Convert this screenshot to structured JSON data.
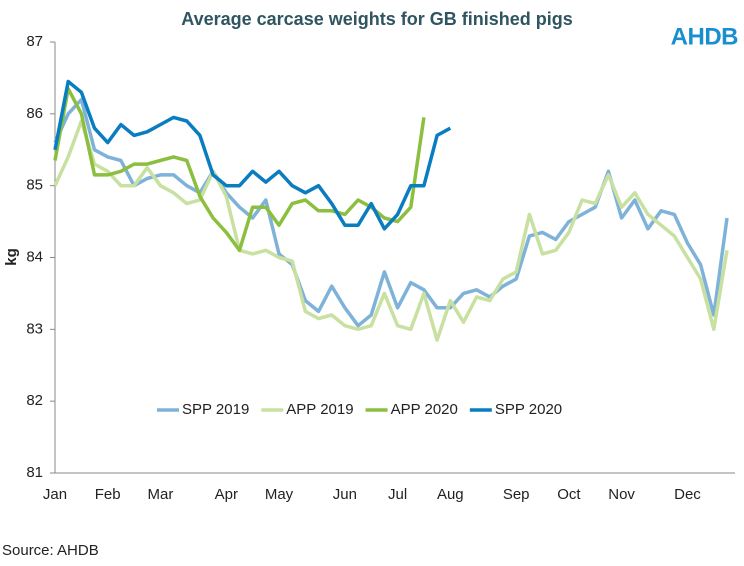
{
  "chart_data": {
    "type": "line",
    "title": "Average carcase weights for GB finished pigs",
    "logo": "AHDB",
    "source": "Source: AHDB",
    "y_label": "kg",
    "categories": [
      "Jan",
      null,
      null,
      null,
      "Feb",
      null,
      null,
      null,
      "Mar",
      null,
      null,
      null,
      null,
      "Apr",
      null,
      null,
      null,
      "May",
      null,
      null,
      null,
      null,
      "Jun",
      null,
      null,
      null,
      "Jul",
      null,
      null,
      null,
      "Aug",
      null,
      null,
      null,
      null,
      "Sep",
      null,
      null,
      null,
      "Oct",
      null,
      null,
      null,
      "Nov",
      null,
      null,
      null,
      null,
      "Dec",
      null,
      null,
      null
    ],
    "ylim": [
      81,
      87
    ],
    "yticks": [
      81,
      82,
      83,
      84,
      85,
      86,
      87
    ],
    "grid": false,
    "legend": "bottom",
    "series": [
      {
        "name": "SPP 2019",
        "color": "#7fb2d8",
        "values": [
          85.6,
          86.0,
          86.2,
          85.5,
          85.4,
          85.35,
          85.0,
          85.1,
          85.15,
          85.15,
          85.0,
          84.9,
          85.2,
          84.9,
          84.7,
          84.55,
          84.8,
          84.05,
          83.9,
          83.4,
          83.25,
          83.6,
          83.3,
          83.05,
          83.2,
          83.8,
          83.3,
          83.65,
          83.55,
          83.3,
          83.3,
          83.5,
          83.55,
          83.45,
          83.6,
          83.7,
          84.3,
          84.35,
          84.25,
          84.5,
          84.6,
          84.7,
          85.2,
          84.55,
          84.8,
          84.4,
          84.65,
          84.6,
          84.2,
          83.9,
          83.2,
          84.55
        ]
      },
      {
        "name": "APP 2019",
        "color": "#c8e0a0",
        "values": [
          85.0,
          85.4,
          85.9,
          85.3,
          85.2,
          85.0,
          85.0,
          85.25,
          85.0,
          84.9,
          84.75,
          84.8,
          85.2,
          84.85,
          84.1,
          84.05,
          84.1,
          84.0,
          83.95,
          83.25,
          83.15,
          83.2,
          83.05,
          83.0,
          83.05,
          83.5,
          83.05,
          83.0,
          83.5,
          82.85,
          83.4,
          83.1,
          83.45,
          83.4,
          83.7,
          83.8,
          84.6,
          84.05,
          84.1,
          84.35,
          84.8,
          84.75,
          85.15,
          84.7,
          84.9,
          84.6,
          84.45,
          84.3,
          84.0,
          83.7,
          83.0,
          84.1
        ]
      },
      {
        "name": "APP 2020",
        "color": "#8cbf3f",
        "values": [
          85.35,
          86.35,
          86.0,
          85.15,
          85.15,
          85.2,
          85.3,
          85.3,
          85.35,
          85.4,
          85.35,
          84.85,
          84.55,
          84.35,
          84.1,
          84.7,
          84.7,
          84.45,
          84.75,
          84.8,
          84.65,
          84.65,
          84.6,
          84.8,
          84.7,
          84.55,
          84.5,
          84.7,
          85.95,
          null,
          null,
          null,
          null,
          null,
          null,
          null,
          null,
          null,
          null,
          null,
          null,
          null,
          null,
          null,
          null,
          null,
          null,
          null,
          null,
          null,
          null,
          null
        ]
      },
      {
        "name": "SPP 2020",
        "color": "#0a7dc0",
        "values": [
          85.5,
          86.45,
          86.3,
          85.8,
          85.6,
          85.85,
          85.7,
          85.75,
          85.85,
          85.95,
          85.9,
          85.7,
          85.15,
          85.0,
          85.0,
          85.2,
          85.05,
          85.2,
          85.0,
          84.9,
          85.0,
          84.75,
          84.45,
          84.45,
          84.75,
          84.4,
          84.6,
          85.0,
          85.0,
          85.7,
          85.8,
          null,
          null,
          null,
          null,
          null,
          null,
          null,
          null,
          null,
          null,
          null,
          null,
          null,
          null,
          null,
          null,
          null,
          null,
          null,
          null,
          null
        ]
      }
    ]
  }
}
